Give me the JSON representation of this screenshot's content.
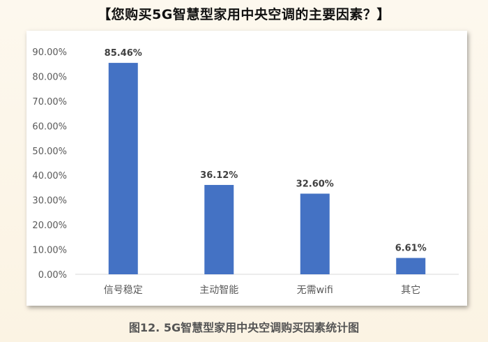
{
  "title": "【您购买5G智慧型家用中央空调的主要因素？】",
  "caption": "图12. 5G智慧型家用中央空调购买因素统计图",
  "chart_data": {
    "type": "bar",
    "categories": [
      "信号稳定",
      "主动智能",
      "无需wifi",
      "其它"
    ],
    "values": [
      85.46,
      36.12,
      32.6,
      6.61
    ],
    "data_labels": [
      "85.46%",
      "36.12%",
      "32.60%",
      "6.61%"
    ],
    "ylim": [
      0,
      90
    ],
    "ytick_labels": [
      "0.00%",
      "10.00%",
      "20.00%",
      "30.00%",
      "40.00%",
      "50.00%",
      "60.00%",
      "70.00%",
      "80.00%",
      "90.00%"
    ],
    "grid": false,
    "bar_color": "#4472c4"
  }
}
